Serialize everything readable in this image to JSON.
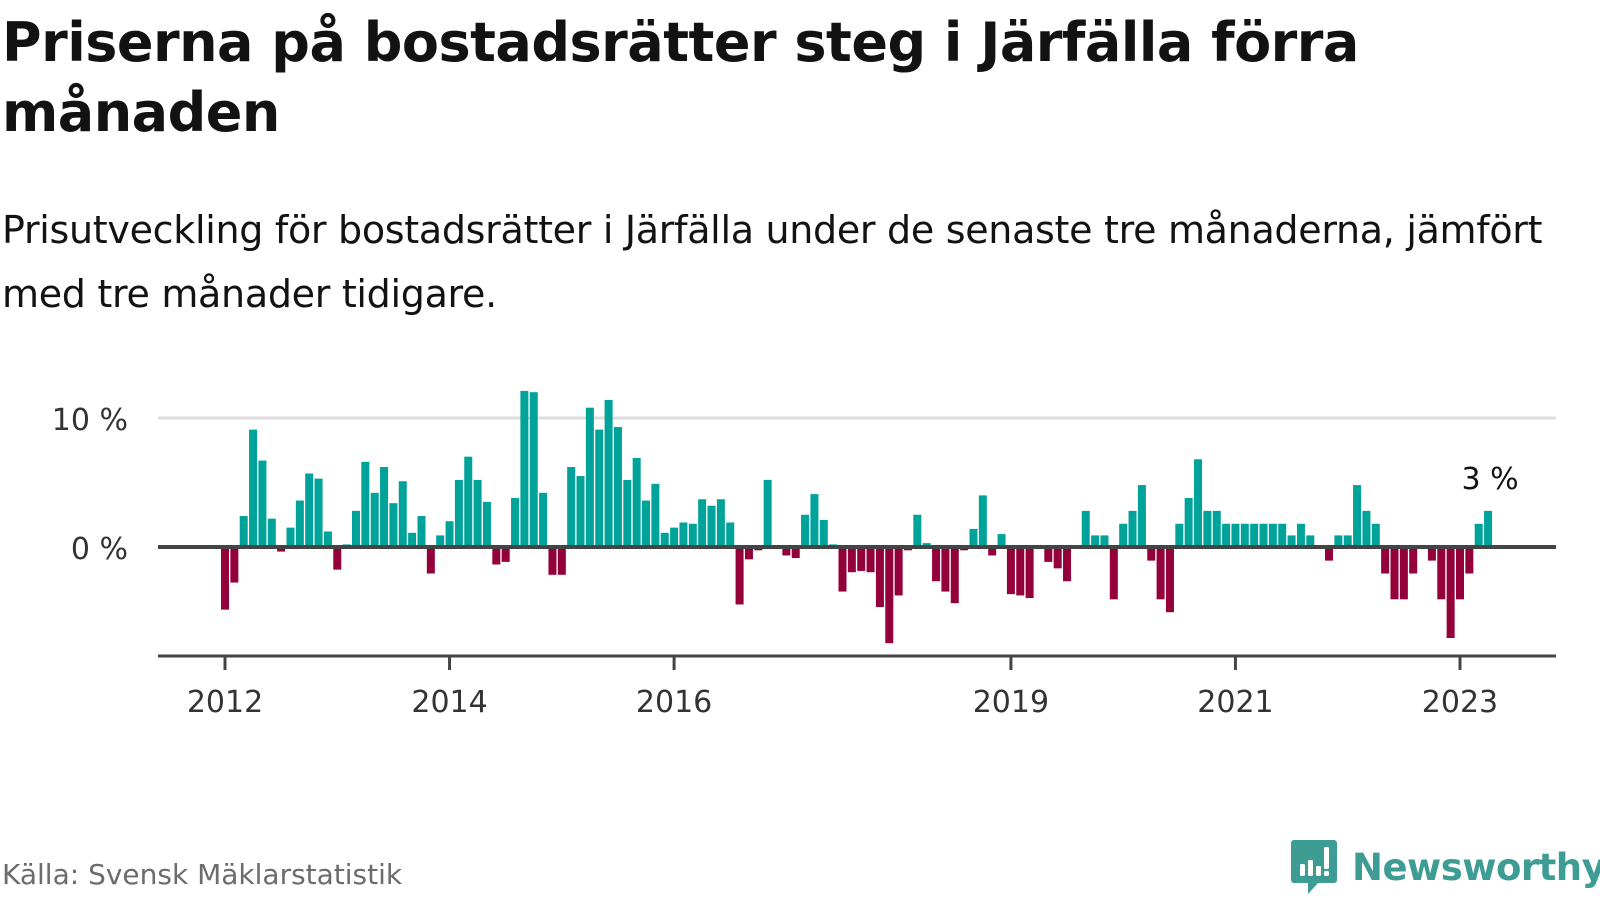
{
  "header": {
    "title": "Priserna på bostadsrätter steg i Järfälla förra månaden",
    "subtitle": "Prisutveckling för bostadsrätter i Järfälla under de senaste tre månaderna, jämfört med tre månader tidigare."
  },
  "footer": {
    "source": "Källa: Svensk Mäklarstatistik",
    "brand": "Newsworthy",
    "brand_icon": "bar-chart-speech-bubble-icon"
  },
  "colors": {
    "positive": "#00a39a",
    "negative": "#93003a",
    "axis": "#444444",
    "grid": "#dddddd",
    "brand": "#3d9d94"
  },
  "chart_data": {
    "type": "bar",
    "title": "Priserna på bostadsrätter steg i Järfälla förra månaden",
    "subtitle": "Prisutveckling för bostadsrätter i Järfälla under de senaste tre månaderna, jämfört med tre månader tidigare.",
    "xlabel": "",
    "ylabel": "",
    "unit": "%",
    "start_month": "2012-01",
    "end_month": "2023-04",
    "ylim": [
      -8.5,
      12.5
    ],
    "grid": true,
    "legend": "none",
    "y_ticks": [
      {
        "value": 0,
        "label": "0 %"
      },
      {
        "value": 10,
        "label": "10 %"
      }
    ],
    "x_ticks": [
      {
        "index": 0,
        "label": "2012"
      },
      {
        "index": 24,
        "label": "2014"
      },
      {
        "index": 48,
        "label": "2016"
      },
      {
        "index": 84,
        "label": "2019"
      },
      {
        "index": 108,
        "label": "2021"
      },
      {
        "index": 132,
        "label": "2023"
      }
    ],
    "annotation": {
      "index": 135,
      "label": "3 %"
    },
    "values": [
      -4.7,
      -2.6,
      2.4,
      9.1,
      6.7,
      2.2,
      -0.2,
      1.5,
      3.6,
      5.7,
      5.3,
      1.2,
      -1.6,
      0.2,
      2.8,
      6.6,
      4.2,
      6.2,
      3.4,
      5.1,
      1.1,
      2.4,
      -1.9,
      0.9,
      2.0,
      5.2,
      7.0,
      5.2,
      3.5,
      -1.2,
      -1.0,
      3.8,
      12.1,
      12.0,
      4.2,
      -2.0,
      -2.0,
      6.2,
      5.5,
      10.8,
      9.1,
      11.4,
      9.3,
      5.2,
      6.9,
      3.6,
      4.9,
      1.1,
      1.5,
      1.9,
      1.8,
      3.7,
      3.2,
      3.7,
      1.9,
      -4.3,
      -0.8,
      -0.1,
      5.2,
      0.0,
      -0.5,
      -0.7,
      2.5,
      4.1,
      2.1,
      0.2,
      -3.3,
      -1.8,
      -1.7,
      -1.8,
      -4.5,
      -7.3,
      -3.6,
      -0.1,
      2.5,
      0.3,
      -2.5,
      -3.3,
      -4.2,
      -0.1,
      1.4,
      4.0,
      -0.5,
      1.0,
      -3.5,
      -3.6,
      -3.8,
      0.0,
      -1.0,
      -1.5,
      -2.5,
      0.0,
      2.8,
      0.9,
      0.9,
      -3.9,
      1.8,
      2.8,
      4.8,
      -0.9,
      -3.9,
      -4.9,
      1.8,
      3.8,
      6.8,
      2.8,
      2.8,
      1.8,
      1.8,
      1.8,
      1.8,
      1.8,
      1.8,
      1.8,
      0.9,
      1.8,
      0.9,
      0.0,
      -0.9,
      0.9,
      0.9,
      4.8,
      2.8,
      1.8,
      -1.9,
      -3.9,
      -3.9,
      -1.9,
      0.0,
      -0.9,
      -3.9,
      -6.9,
      -3.9,
      -1.9,
      1.8,
      2.8
    ]
  }
}
